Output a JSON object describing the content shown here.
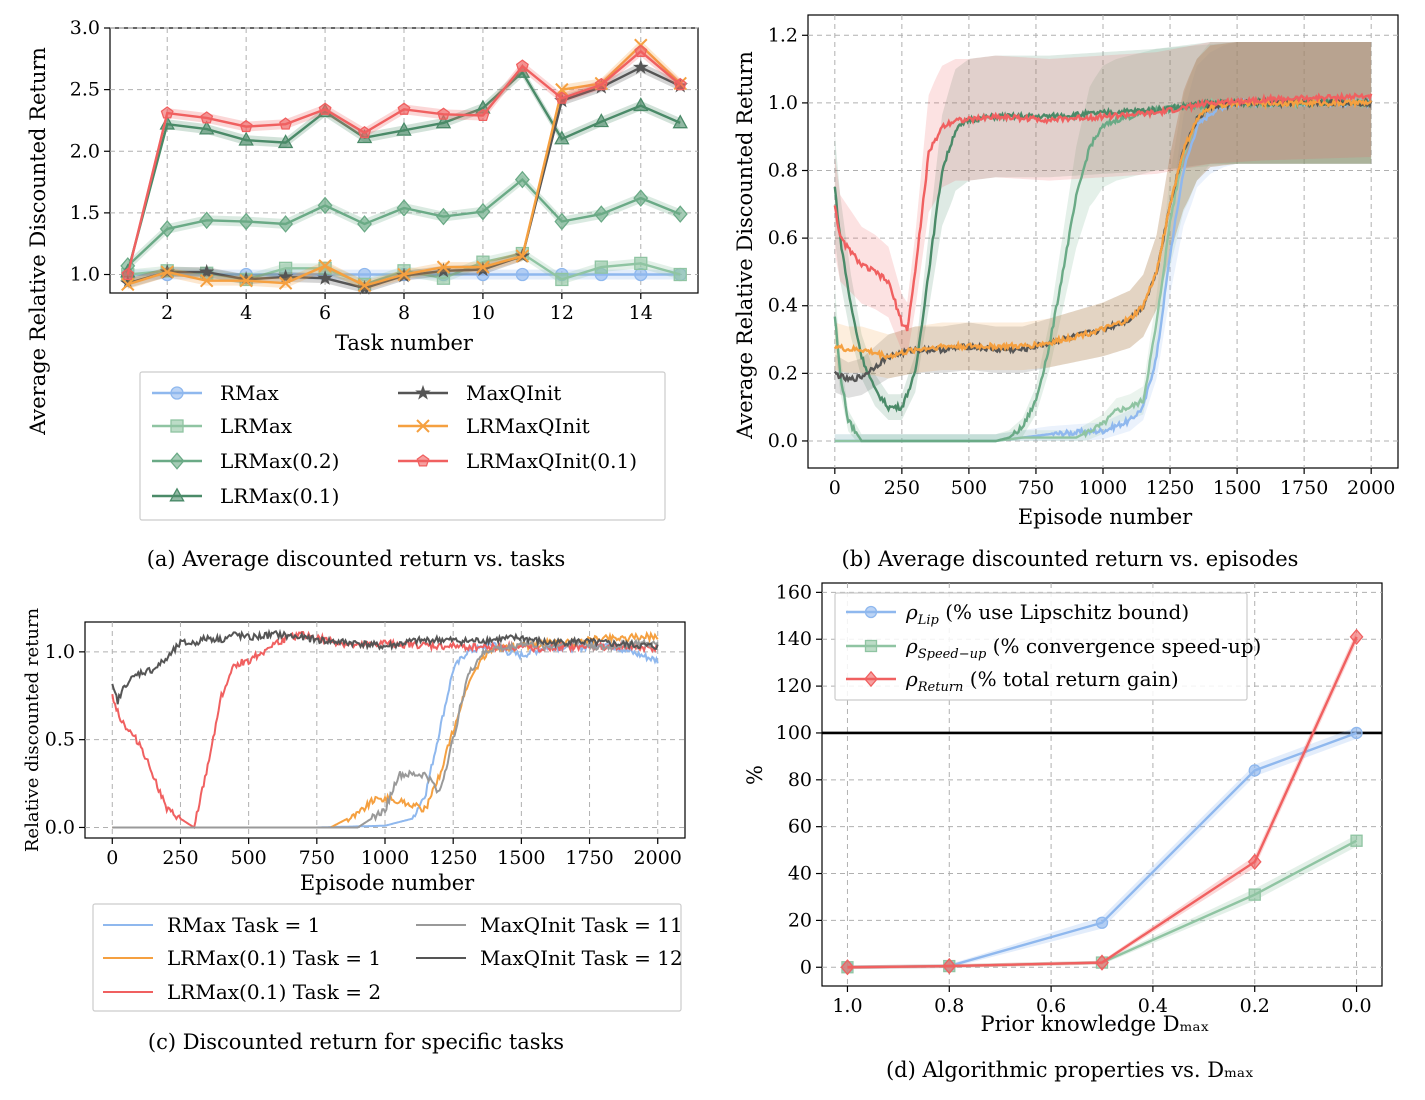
{
  "panels": {
    "a": {
      "caption": "(a) Average discounted return vs. tasks"
    },
    "b": {
      "caption": "(b) Average discounted return vs. episodes"
    },
    "c": {
      "caption": "(c) Discounted return for specific tasks"
    },
    "d": {
      "caption": "(d) Algorithmic properties vs. Dₘₐₓ"
    }
  },
  "chart_data": [
    {
      "id": "a",
      "type": "line",
      "xlabel": "Task number",
      "ylabel": "Average Relative Discounted Return",
      "xlim": [
        0.55,
        15.45
      ],
      "ylim": [
        0.85,
        3.0
      ],
      "xticks": [
        "2",
        "4",
        "6",
        "8",
        "10",
        "12",
        "14"
      ],
      "xtick_vals": [
        2,
        4,
        6,
        8,
        10,
        12,
        14
      ],
      "yticks": [
        "1.0",
        "1.5",
        "2.0",
        "2.5",
        "3.0"
      ],
      "ytick_vals": [
        1.0,
        1.5,
        2.0,
        2.5,
        3.0
      ],
      "grid": true,
      "legend_position": "below",
      "x": [
        1,
        2,
        3,
        4,
        5,
        6,
        7,
        8,
        9,
        10,
        11,
        12,
        13,
        14,
        15
      ],
      "series": [
        {
          "name": "RMax",
          "color": "#8fb8ee",
          "marker": "circle",
          "values": [
            1.0,
            1.0,
            1.0,
            1.0,
            1.0,
            1.0,
            1.0,
            1.0,
            1.0,
            1.0,
            1.0,
            1.0,
            1.0,
            1.0,
            1.0
          ]
        },
        {
          "name": "LRMax",
          "color": "#8fc4a2",
          "marker": "square",
          "values": [
            1.0,
            1.03,
            1.01,
            0.96,
            1.05,
            1.05,
            0.92,
            1.03,
            0.97,
            1.1,
            1.17,
            0.96,
            1.06,
            1.09,
            1.0
          ]
        },
        {
          "name": "LRMax(0.2)",
          "color": "#6aaa86",
          "marker": "diamond",
          "values": [
            1.07,
            1.37,
            1.44,
            1.43,
            1.41,
            1.56,
            1.41,
            1.54,
            1.47,
            1.51,
            1.77,
            1.43,
            1.49,
            1.62,
            1.49
          ]
        },
        {
          "name": "LRMax(0.1)",
          "color": "#4a8a68",
          "marker": "triangle",
          "values": [
            1.02,
            2.22,
            2.18,
            2.09,
            2.07,
            2.32,
            2.11,
            2.17,
            2.23,
            2.35,
            2.64,
            2.1,
            2.24,
            2.37,
            2.23
          ]
        },
        {
          "name": "MaxQInit",
          "color": "#555555",
          "marker": "star",
          "values": [
            0.93,
            1.02,
            1.02,
            0.96,
            0.98,
            0.97,
            0.89,
            0.99,
            1.03,
            1.04,
            1.15,
            2.41,
            2.52,
            2.68,
            2.53
          ]
        },
        {
          "name": "LRMaxQInit",
          "color": "#f5a040",
          "marker": "x",
          "values": [
            0.92,
            1.02,
            0.95,
            0.95,
            0.93,
            1.07,
            0.91,
            1.0,
            1.06,
            1.06,
            1.15,
            2.5,
            2.55,
            2.86,
            2.55
          ]
        },
        {
          "name": "LRMaxQInit(0.1)",
          "color": "#f06060",
          "marker": "pentagon",
          "values": [
            1.0,
            2.31,
            2.27,
            2.2,
            2.22,
            2.34,
            2.15,
            2.34,
            2.3,
            2.29,
            2.69,
            2.43,
            2.54,
            2.81,
            2.54
          ]
        }
      ]
    },
    {
      "id": "b",
      "type": "line",
      "xlabel": "Episode number",
      "ylabel": "Average Relative Discounted Return",
      "xlim": [
        -100,
        2100
      ],
      "ylim": [
        -0.08,
        1.26
      ],
      "xticks": [
        "0",
        "250",
        "500",
        "750",
        "1000",
        "1250",
        "1500",
        "1750",
        "2000"
      ],
      "xtick_vals": [
        0,
        250,
        500,
        750,
        1000,
        1250,
        1500,
        1750,
        2000
      ],
      "yticks": [
        "0.0",
        "0.2",
        "0.4",
        "0.6",
        "0.8",
        "1.0",
        "1.2"
      ],
      "ytick_vals": [
        0.0,
        0.2,
        0.4,
        0.6,
        0.8,
        1.0,
        1.2
      ],
      "grid": true,
      "series": [
        {
          "name": "RMax",
          "color": "#8fb8ee",
          "x": [
            0,
            600,
            800,
            1000,
            1100,
            1150,
            1200,
            1250,
            1300,
            1350,
            1400,
            1450,
            1500,
            2000
          ],
          "values": [
            0.0,
            0.0,
            0.02,
            0.03,
            0.06,
            0.1,
            0.25,
            0.55,
            0.8,
            0.93,
            0.97,
            0.99,
            1.0,
            1.0
          ]
        },
        {
          "name": "LRMax",
          "color": "#8fc4a2",
          "x": [
            0,
            600,
            700,
            900,
            1000,
            1050,
            1100,
            1150,
            1200,
            1250,
            1300,
            1350,
            1400,
            1500,
            2000
          ],
          "values": [
            0.0,
            0.0,
            0.01,
            0.01,
            0.05,
            0.09,
            0.1,
            0.12,
            0.35,
            0.65,
            0.85,
            0.95,
            1.0,
            1.0,
            1.0
          ]
        },
        {
          "name": "LRMax(0.2)",
          "color": "#6aaa86",
          "x": [
            0,
            20,
            50,
            100,
            150,
            200,
            300,
            500,
            600,
            650,
            700,
            750,
            800,
            850,
            900,
            950,
            1000,
            1050,
            1100,
            1200,
            1500,
            2000
          ],
          "values": [
            0.37,
            0.2,
            0.06,
            0.0,
            0.0,
            0.0,
            0.0,
            0.0,
            0.0,
            0.01,
            0.04,
            0.12,
            0.28,
            0.5,
            0.72,
            0.87,
            0.93,
            0.95,
            0.96,
            0.98,
            1.0,
            1.0
          ]
        },
        {
          "name": "LRMax(0.1)",
          "color": "#4a8a68",
          "x": [
            0,
            20,
            60,
            100,
            150,
            200,
            250,
            300,
            350,
            400,
            450,
            500,
            600,
            800,
            1000,
            1200,
            1400,
            1600,
            2000
          ],
          "values": [
            0.75,
            0.6,
            0.4,
            0.25,
            0.15,
            0.1,
            0.1,
            0.2,
            0.5,
            0.8,
            0.92,
            0.95,
            0.96,
            0.96,
            0.97,
            0.98,
            1.0,
            1.0,
            1.0
          ]
        },
        {
          "name": "MaxQInit",
          "color": "#555555",
          "x": [
            0,
            50,
            100,
            150,
            200,
            250,
            300,
            400,
            500,
            600,
            700,
            800,
            900,
            1000,
            1100,
            1150,
            1200,
            1250,
            1300,
            1350,
            1400,
            1500,
            2000
          ],
          "values": [
            0.2,
            0.18,
            0.19,
            0.22,
            0.25,
            0.26,
            0.27,
            0.27,
            0.28,
            0.27,
            0.27,
            0.29,
            0.31,
            0.33,
            0.36,
            0.4,
            0.5,
            0.7,
            0.86,
            0.95,
            0.99,
            1.0,
            1.0
          ]
        },
        {
          "name": "LRMaxQInit",
          "color": "#f5a040",
          "x": [
            0,
            50,
            100,
            150,
            200,
            250,
            300,
            400,
            500,
            600,
            700,
            800,
            900,
            1000,
            1100,
            1150,
            1200,
            1250,
            1300,
            1350,
            1400,
            1500,
            2000
          ],
          "values": [
            0.28,
            0.27,
            0.27,
            0.26,
            0.25,
            0.26,
            0.27,
            0.28,
            0.28,
            0.28,
            0.28,
            0.29,
            0.31,
            0.33,
            0.36,
            0.4,
            0.5,
            0.7,
            0.86,
            0.95,
            0.99,
            1.0,
            1.0
          ]
        },
        {
          "name": "LRMaxQInit(0.1)",
          "color": "#f06060",
          "x": [
            0,
            20,
            50,
            100,
            150,
            200,
            250,
            270,
            300,
            350,
            400,
            450,
            500,
            600,
            800,
            1000,
            1200,
            1400,
            1600,
            2000
          ],
          "values": [
            0.7,
            0.6,
            0.57,
            0.52,
            0.5,
            0.47,
            0.35,
            0.33,
            0.5,
            0.85,
            0.93,
            0.95,
            0.95,
            0.96,
            0.95,
            0.96,
            0.97,
            1.0,
            1.01,
            1.02
          ]
        }
      ]
    },
    {
      "id": "c",
      "type": "line",
      "xlabel": "Episode number",
      "ylabel": "Relative discounted return",
      "xlim": [
        -100,
        2100
      ],
      "ylim": [
        -0.06,
        1.17
      ],
      "xticks": [
        "0",
        "250",
        "500",
        "750",
        "1000",
        "1250",
        "1500",
        "1750",
        "2000"
      ],
      "xtick_vals": [
        0,
        250,
        500,
        750,
        1000,
        1250,
        1500,
        1750,
        2000
      ],
      "yticks": [
        "0.0",
        "0.5",
        "1.0"
      ],
      "ytick_vals": [
        0.0,
        0.5,
        1.0
      ],
      "grid": true,
      "legend_position": "below",
      "series": [
        {
          "name": "RMax Task = 1",
          "color": "#8fb8ee",
          "x": [
            0,
            750,
            1000,
            1100,
            1150,
            1200,
            1250,
            1300,
            1350,
            1400,
            1450,
            1500,
            1600,
            1700,
            1800,
            1900,
            2000
          ],
          "values": [
            0.0,
            0.0,
            0.01,
            0.05,
            0.2,
            0.55,
            0.9,
            1.0,
            1.02,
            1.05,
            1.0,
            0.98,
            1.03,
            1.02,
            1.05,
            1.0,
            0.95
          ]
        },
        {
          "name": "LRMax(0.1) Task = 1",
          "color": "#f5a040",
          "x": [
            0,
            800,
            900,
            950,
            1000,
            1050,
            1100,
            1150,
            1200,
            1250,
            1300,
            1350,
            1400,
            1500,
            1600,
            1700,
            1800,
            1900,
            2000
          ],
          "values": [
            0.0,
            0.0,
            0.08,
            0.15,
            0.17,
            0.15,
            0.13,
            0.1,
            0.3,
            0.55,
            0.8,
            0.95,
            1.02,
            1.03,
            1.05,
            1.05,
            1.08,
            1.08,
            1.09
          ]
        },
        {
          "name": "LRMax(0.1) Task = 2",
          "color": "#f06060",
          "x": [
            0,
            30,
            60,
            100,
            150,
            200,
            250,
            280,
            300,
            350,
            400,
            450,
            500,
            550,
            600,
            650,
            700,
            800,
            900,
            1000,
            1200,
            1400,
            1600,
            1800,
            2000
          ],
          "values": [
            0.75,
            0.62,
            0.55,
            0.48,
            0.3,
            0.1,
            0.05,
            0.02,
            0.0,
            0.35,
            0.75,
            0.93,
            0.95,
            1.0,
            1.05,
            1.08,
            1.1,
            1.06,
            1.03,
            1.05,
            1.03,
            1.03,
            1.02,
            1.03,
            1.02
          ]
        },
        {
          "name": "MaxQInit Task = 11",
          "color": "#999999",
          "x": [
            0,
            900,
            1000,
            1050,
            1100,
            1150,
            1200,
            1250,
            1300,
            1350,
            1400,
            1450,
            1500,
            1600,
            1700,
            1800,
            1900,
            2000
          ],
          "values": [
            0.0,
            0.0,
            0.1,
            0.3,
            0.3,
            0.3,
            0.2,
            0.5,
            0.85,
            0.98,
            1.02,
            1.02,
            1.05,
            1.03,
            1.06,
            1.02,
            1.05,
            1.04
          ]
        },
        {
          "name": "MaxQInit Task = 12",
          "color": "#555555",
          "x": [
            0,
            20,
            50,
            100,
            150,
            200,
            250,
            300,
            350,
            400,
            450,
            500,
            600,
            700,
            800,
            900,
            1000,
            1100,
            1200,
            1300,
            1400,
            1500,
            1600,
            1700,
            1800,
            1900,
            2000
          ],
          "values": [
            0.8,
            0.72,
            0.82,
            0.88,
            0.9,
            0.96,
            1.05,
            1.05,
            1.08,
            1.07,
            1.1,
            1.08,
            1.1,
            1.08,
            1.06,
            1.05,
            1.03,
            1.06,
            1.07,
            1.06,
            1.07,
            1.08,
            1.05,
            1.06,
            1.05,
            1.04,
            1.03
          ]
        }
      ]
    },
    {
      "id": "d",
      "type": "line",
      "xlabel": "Prior knowledge Dₘₐₓ",
      "ylabel": "%",
      "xlim": [
        1.05,
        -0.05
      ],
      "ylim": [
        -8,
        164
      ],
      "xticks": [
        "1.0",
        "0.8",
        "0.6",
        "0.4",
        "0.2",
        "0.0"
      ],
      "xtick_vals": [
        1.0,
        0.8,
        0.6,
        0.4,
        0.2,
        0.0
      ],
      "yticks": [
        "0",
        "20",
        "40",
        "60",
        "80",
        "100",
        "120",
        "140",
        "160"
      ],
      "ytick_vals": [
        0,
        20,
        40,
        60,
        80,
        100,
        120,
        140,
        160
      ],
      "reference_line": 100,
      "grid": true,
      "legend_position": "upper-left",
      "x": [
        1.0,
        0.8,
        0.5,
        0.2,
        0.0
      ],
      "series": [
        {
          "name": "ρ_Lip (% use Lipschitz bound)",
          "label_main": "ρ",
          "label_sub": "Lip",
          "label_rest": " (% use Lipschitz bound)",
          "color": "#8fb8ee",
          "marker": "circle",
          "values": [
            0,
            0.5,
            19,
            84,
            100
          ]
        },
        {
          "name": "ρ_Speed-up (% convergence speed-up)",
          "label_main": "ρ",
          "label_sub": "Speed−up",
          "label_rest": " (% convergence speed-up)",
          "color": "#8fc4a2",
          "marker": "square",
          "values": [
            0,
            0.5,
            2,
            31,
            54
          ]
        },
        {
          "name": "ρ_Return (% total return gain)",
          "label_main": "ρ",
          "label_sub": "Return",
          "label_rest": " (% total return gain)",
          "color": "#f06060",
          "marker": "diamond",
          "values": [
            0,
            0.5,
            2,
            45,
            141
          ]
        }
      ]
    }
  ]
}
